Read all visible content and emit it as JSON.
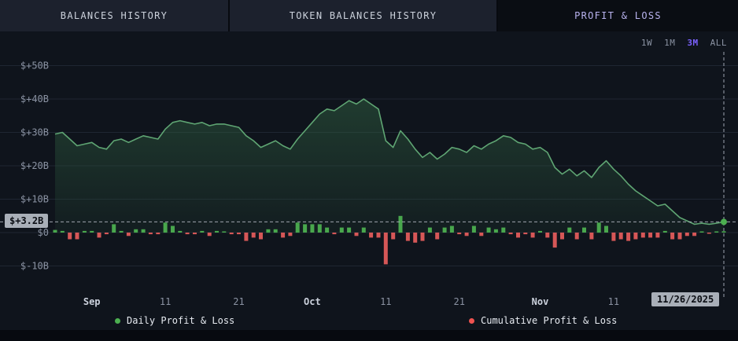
{
  "tabs": [
    {
      "label": "BALANCES HISTORY",
      "active": false
    },
    {
      "label": "TOKEN BALANCES HISTORY",
      "active": false
    },
    {
      "label": "PROFIT & LOSS",
      "active": true
    }
  ],
  "range_selector": {
    "options": [
      "1W",
      "1M",
      "3M",
      "ALL"
    ],
    "selected": "3M"
  },
  "crosshair": {
    "value_label": "$+3.2B",
    "date_label": "11/26/2025"
  },
  "legend": [
    {
      "label": "Daily Profit & Loss",
      "color": "#4caf50"
    },
    {
      "label": "Cumulative Profit & Loss",
      "color": "#ef5350"
    }
  ],
  "colors": {
    "positive": "#4caf50",
    "negative": "#e25b5b",
    "line": "#5fa573",
    "area_fill": "#2e5c3f",
    "accent_purple": "#7b61ff",
    "badge_bg": "#a9afb8",
    "axis_text": "#8b93a3",
    "grid": "#242b38"
  },
  "chart_data": {
    "type": "bar",
    "subtype": "daily bars + cumulative area line",
    "y_unit": "billions USD",
    "ylim": [
      -13,
      56
    ],
    "grid": true,
    "legend_position": "bottom",
    "current_value": 3.2,
    "current_date": "11/26/2025",
    "y_ticks": [
      {
        "label": "$+50B",
        "value": 50
      },
      {
        "label": "$+40B",
        "value": 40
      },
      {
        "label": "$+30B",
        "value": 30
      },
      {
        "label": "$+20B",
        "value": 20
      },
      {
        "label": "$+10B",
        "value": 10
      },
      {
        "label": "$0",
        "value": 0
      },
      {
        "label": "$-10B",
        "value": -10
      }
    ],
    "x_ticks": [
      {
        "label": "Sep",
        "day": 5,
        "major": true
      },
      {
        "label": "11",
        "day": 15,
        "major": false
      },
      {
        "label": "21",
        "day": 25,
        "major": false
      },
      {
        "label": "Oct",
        "day": 35,
        "major": true
      },
      {
        "label": "11",
        "day": 45,
        "major": false
      },
      {
        "label": "21",
        "day": 55,
        "major": false
      },
      {
        "label": "Nov",
        "day": 66,
        "major": true
      },
      {
        "label": "11",
        "day": 76,
        "major": false
      }
    ],
    "series": [
      {
        "name": "Daily Profit & Loss",
        "type": "bar",
        "values": [
          0.8,
          0.5,
          -2.0,
          -2.0,
          0.5,
          0.5,
          -1.5,
          -0.5,
          2.5,
          0.5,
          -1.0,
          1.0,
          1.0,
          -0.5,
          -0.5,
          3.0,
          2.0,
          0.5,
          -0.5,
          -0.5,
          0.5,
          -1.0,
          0.5,
          0.2,
          -0.5,
          -0.5,
          -2.5,
          -1.5,
          -2.0,
          1.0,
          1.0,
          -1.5,
          -1.0,
          3.0,
          2.5,
          2.5,
          2.5,
          1.5,
          -0.5,
          1.5,
          1.5,
          -1.0,
          1.5,
          -1.5,
          -1.5,
          -9.5,
          -2.0,
          5.0,
          -2.5,
          -3.0,
          -2.5,
          1.5,
          -2.0,
          1.5,
          2.0,
          -0.5,
          -1.0,
          2.0,
          -1.0,
          1.5,
          1.0,
          1.5,
          -0.5,
          -1.5,
          -0.5,
          -1.5,
          0.5,
          -1.5,
          -4.5,
          -2.0,
          1.5,
          -2.0,
          1.5,
          -2.0,
          3.0,
          2.0,
          -2.5,
          -2.0,
          -2.5,
          -2.0,
          -1.5,
          -1.5,
          -1.5,
          0.5,
          -2.0,
          -2.0,
          -1.0,
          -1.0,
          0.3,
          -0.3,
          0.3,
          0.4
        ]
      },
      {
        "name": "Cumulative Profit & Loss",
        "type": "area",
        "values": [
          29.5,
          30.0,
          28.0,
          26.0,
          26.5,
          27.0,
          25.5,
          25.0,
          27.5,
          28.0,
          27.0,
          28.0,
          29.0,
          28.5,
          28.0,
          31.0,
          33.0,
          33.5,
          33.0,
          32.5,
          33.0,
          32.0,
          32.5,
          32.5,
          32.0,
          31.5,
          29.0,
          27.5,
          25.5,
          26.5,
          27.5,
          26.0,
          25.0,
          28.0,
          30.5,
          33.0,
          35.5,
          37.0,
          36.5,
          38.0,
          39.5,
          38.5,
          40.0,
          38.5,
          37.0,
          27.5,
          25.5,
          30.5,
          28.0,
          25.0,
          22.5,
          24.0,
          22.0,
          23.5,
          25.5,
          25.0,
          24.0,
          26.0,
          25.0,
          26.5,
          27.5,
          29.0,
          28.5,
          27.0,
          26.5,
          25.0,
          25.5,
          24.0,
          19.5,
          17.5,
          19.0,
          17.0,
          18.5,
          16.5,
          19.5,
          21.5,
          19.0,
          17.0,
          14.5,
          12.5,
          11.0,
          9.5,
          8.0,
          8.5,
          6.5,
          4.5,
          3.5,
          2.5,
          2.8,
          2.5,
          2.8,
          3.2
        ]
      }
    ]
  }
}
